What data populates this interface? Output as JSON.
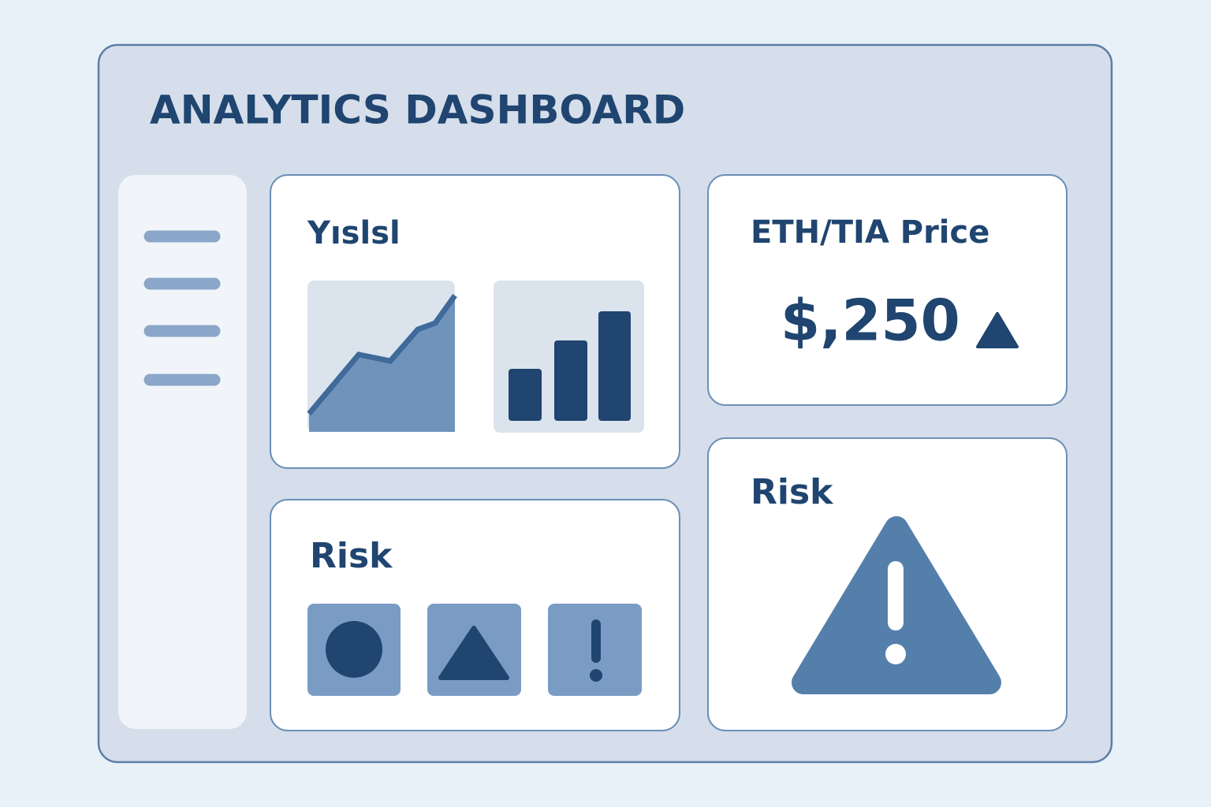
{
  "header": {
    "title": "ANALYTICS DASHBOARD"
  },
  "cards": [
    {
      "title": "Yıslsl"
    },
    {
      "title": "ETH/TIA Price",
      "value": "$,250"
    },
    {
      "title": "Risk"
    },
    {
      "title": "Risk"
    }
  ]
}
